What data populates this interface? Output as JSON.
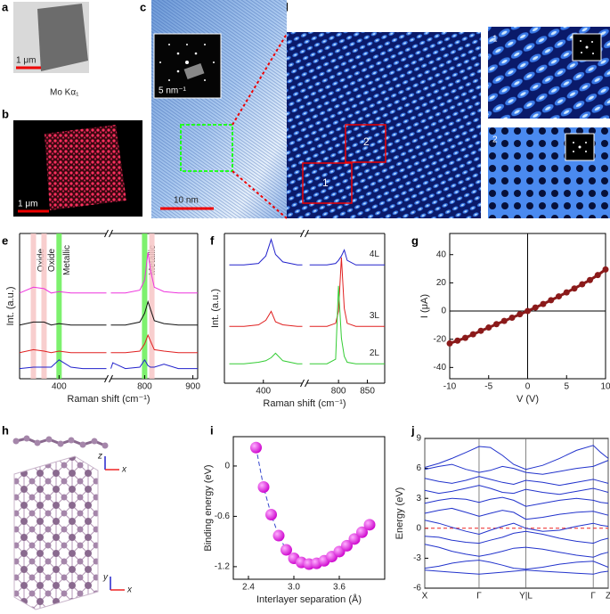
{
  "panel_labels": [
    "a",
    "b",
    "c",
    "d",
    "e",
    "f",
    "g",
    "h",
    "i",
    "j"
  ],
  "images": {
    "a_scale": "1 μm",
    "a_caption": "Mo Kα₁",
    "b_scale": "1 μm",
    "c_inset_scale": "5 nm⁻¹",
    "c_scale": "10 nm",
    "d_box_1": "1",
    "d_box_2": "2",
    "d_inset_1": "1",
    "d_inset_2": "2"
  },
  "structure": {
    "axis_labels": [
      "z",
      "x",
      "y",
      "x"
    ]
  },
  "chart_data": [
    {
      "type": "line",
      "xlabel": "Raman shift (cm⁻¹)",
      "ylabel": "Int. (a.u.)",
      "x_segments": [
        [
          300,
          520
        ],
        [
          730,
          910
        ]
      ],
      "xticks": [
        400,
        800,
        900
      ],
      "ylim": [
        0,
        10
      ],
      "bands": [
        {
          "x": 335,
          "color": "#f7c6c6",
          "label": "Oxide"
        },
        {
          "x": 362,
          "color": "#f7c6c6",
          "label": "Oxide"
        },
        {
          "x": 400,
          "color": "#66ee55",
          "label": "Metallic"
        },
        {
          "x": 800,
          "color": "#66ee55",
          "label": "Metallic"
        },
        {
          "x": 815,
          "color": "#f7c6c6"
        }
      ],
      "series": [
        {
          "color": "#ee33dd",
          "x": [
            300,
            335,
            362,
            380,
            400,
            430,
            460,
            500,
            520,
            730,
            734,
            760,
            790,
            800,
            807,
            812,
            820,
            840,
            870,
            910
          ],
          "values": [
            5.9,
            6.3,
            6.2,
            5.9,
            6.0,
            5.9,
            5.9,
            5.9,
            5.9,
            5.9,
            5.9,
            5.9,
            6.1,
            6.8,
            8.7,
            7.5,
            6.3,
            6.0,
            5.9,
            5.9
          ]
        },
        {
          "color": "#111111",
          "x": [
            300,
            335,
            362,
            380,
            400,
            430,
            460,
            500,
            520,
            730,
            734,
            760,
            790,
            800,
            807,
            812,
            820,
            840,
            870,
            910
          ],
          "values": [
            3.7,
            3.9,
            3.9,
            3.7,
            3.8,
            3.7,
            3.7,
            3.7,
            3.7,
            3.7,
            3.7,
            3.7,
            3.9,
            4.5,
            5.3,
            4.8,
            4.0,
            3.8,
            3.7,
            3.7
          ]
        },
        {
          "color": "#e02020",
          "x": [
            300,
            335,
            362,
            380,
            400,
            430,
            460,
            500,
            520,
            730,
            734,
            760,
            790,
            800,
            807,
            812,
            820,
            840,
            870,
            910
          ],
          "values": [
            1.8,
            2.0,
            1.9,
            1.8,
            1.9,
            1.8,
            1.8,
            1.8,
            1.8,
            1.8,
            1.8,
            1.8,
            1.9,
            2.4,
            3.0,
            2.6,
            2.0,
            1.9,
            1.8,
            1.8
          ]
        },
        {
          "color": "#2222cc",
          "x": [
            300,
            335,
            362,
            380,
            400,
            430,
            460,
            500,
            520,
            730,
            734,
            760,
            790,
            800,
            807,
            812,
            820,
            840,
            870,
            910
          ],
          "values": [
            0.7,
            0.8,
            0.8,
            0.8,
            1.3,
            0.8,
            0.7,
            0.7,
            0.7,
            0.7,
            1.1,
            0.7,
            0.8,
            1.3,
            0.9,
            0.8,
            0.8,
            1.0,
            0.7,
            0.7
          ]
        }
      ]
    },
    {
      "type": "line",
      "xlabel": "Raman shift (cm⁻¹)",
      "ylabel": "Int. (a.u.)",
      "x_segments": [
        [
          320,
          480
        ],
        [
          745,
          880
        ]
      ],
      "xticks": [
        400,
        800,
        850
      ],
      "ylim": [
        0,
        10
      ],
      "series": [
        {
          "name": "4L",
          "color": "#2222cc",
          "x": [
            330,
            360,
            390,
            405,
            416,
            425,
            440,
            470,
            480,
            750,
            780,
            795,
            800,
            805,
            810,
            815,
            830,
            860,
            880
          ],
          "values": [
            7.9,
            7.9,
            8.0,
            8.5,
            9.6,
            8.6,
            8.1,
            7.9,
            7.9,
            7.9,
            7.9,
            8.0,
            8.2,
            8.5,
            8.9,
            8.2,
            7.9,
            7.9,
            7.9
          ]
        },
        {
          "name": "3L",
          "color": "#e02020",
          "x": [
            330,
            360,
            390,
            405,
            416,
            425,
            440,
            470,
            480,
            750,
            780,
            795,
            800,
            805,
            810,
            815,
            830,
            860,
            880
          ],
          "values": [
            3.8,
            3.8,
            3.9,
            4.2,
            4.8,
            4.1,
            3.9,
            3.8,
            3.8,
            3.8,
            3.8,
            4.0,
            4.8,
            8.4,
            5.0,
            4.0,
            3.8,
            3.8,
            3.8
          ]
        },
        {
          "name": "2L",
          "color": "#33cc33",
          "x": [
            330,
            360,
            390,
            405,
            416,
            425,
            440,
            470,
            480,
            750,
            780,
            795,
            800,
            805,
            810,
            815,
            830,
            860,
            880
          ],
          "values": [
            1.3,
            1.3,
            1.4,
            1.5,
            1.7,
            2.0,
            1.5,
            1.3,
            1.3,
            1.3,
            1.3,
            1.6,
            6.5,
            3.0,
            1.8,
            1.4,
            1.3,
            1.3,
            1.3
          ]
        }
      ]
    },
    {
      "type": "scatter",
      "xlabel": "V (V)",
      "ylabel": "I (μA)",
      "line_style": "solid",
      "zero_lines": true,
      "xlim": [
        -10,
        10
      ],
      "xticks": [
        -10,
        -5,
        0,
        5,
        10
      ],
      "ylim": [
        -48,
        55
      ],
      "yticks": [
        -40,
        -20,
        0,
        20,
        40
      ],
      "series": [
        {
          "color": "#8b1a1a",
          "x": [
            -10,
            -9,
            -8,
            -7,
            -6,
            -5,
            -4,
            -3,
            -2,
            -1,
            0,
            1,
            2,
            3,
            4,
            5,
            6,
            7,
            8,
            9,
            10
          ],
          "values": [
            -23,
            -21,
            -19,
            -16.5,
            -14,
            -11.7,
            -9.3,
            -7,
            -4.7,
            -2.3,
            0,
            2.5,
            5,
            7.7,
            10.4,
            13.2,
            16,
            19,
            22,
            25.5,
            29.5
          ]
        }
      ]
    },
    {
      "type": "scatter",
      "xlabel": "Interlayer separation (Å)",
      "ylabel": "Binding energy (eV)",
      "line_style": "dashed",
      "xlim": [
        2.2,
        4.2
      ],
      "xticks": [
        2.4,
        {
          "value": 3,
          "label": "3.0"
        },
        3.6
      ],
      "ylim": [
        -1.35,
        0.35
      ],
      "yticks": [
        0,
        -0.6,
        -1.2
      ],
      "series": [
        {
          "color": "#ee22ee",
          "x": [
            2.5,
            2.6,
            2.7,
            2.8,
            2.9,
            3.0,
            3.1,
            3.2,
            3.3,
            3.4,
            3.5,
            3.6,
            3.7,
            3.8,
            3.9,
            4.0
          ],
          "values": [
            0.22,
            -0.25,
            -0.58,
            -0.83,
            -1.0,
            -1.1,
            -1.15,
            -1.17,
            -1.16,
            -1.13,
            -1.08,
            -1.02,
            -0.95,
            -0.87,
            -0.79,
            -0.7
          ]
        }
      ]
    },
    {
      "type": "line",
      "ylabel": "Energy (eV)",
      "color": "#2233cc",
      "fermi_level": 0,
      "grid": true,
      "xlim": [
        0,
        196
      ],
      "xticks": [
        {
          "value": 0,
          "label": "X"
        },
        {
          "value": 58,
          "label": "Γ"
        },
        {
          "value": 108,
          "label": "Y|L"
        },
        {
          "value": 180,
          "label": "Γ"
        },
        {
          "value": 196,
          "label": "Z"
        }
      ],
      "ylim": [
        -6,
        9
      ],
      "yticks": [
        -6,
        -3,
        0,
        3,
        6,
        9
      ],
      "series": [
        {
          "x": [
            0,
            15,
            29,
            44,
            58,
            70,
            83,
            95,
            108,
            126,
            144,
            162,
            180,
            188,
            196
          ],
          "values": [
            -4.2,
            -4.3,
            -4.4,
            -4.5,
            -4.6,
            -4.5,
            -4.4,
            -4.3,
            -4.2,
            -4.3,
            -4.4,
            -4.5,
            -4.6,
            -4.4,
            -4.3
          ]
        },
        {
          "x": [
            0,
            15,
            29,
            44,
            58,
            70,
            83,
            95,
            108,
            126,
            144,
            162,
            180,
            188,
            196
          ],
          "values": [
            -4.0,
            -3.8,
            -3.5,
            -3.3,
            -3.2,
            -3.4,
            -3.7,
            -4.0,
            -4.1,
            -3.9,
            -3.6,
            -3.4,
            -3.3,
            -3.6,
            -3.9
          ]
        },
        {
          "x": [
            0,
            15,
            29,
            44,
            58,
            70,
            83,
            95,
            108,
            126,
            144,
            162,
            180,
            188,
            196
          ],
          "values": [
            -1.6,
            -1.9,
            -2.3,
            -2.6,
            -2.8,
            -2.6,
            -2.3,
            -2.0,
            -1.9,
            -2.1,
            -2.4,
            -2.7,
            -2.9,
            -2.6,
            -2.4
          ]
        },
        {
          "x": [
            0,
            15,
            29,
            44,
            58,
            70,
            83,
            95,
            108,
            126,
            144,
            162,
            180,
            188,
            196
          ],
          "values": [
            -0.8,
            -0.9,
            -1.2,
            -1.4,
            -1.5,
            -1.2,
            -0.9,
            -0.5,
            -0.3,
            -0.6,
            -1.0,
            -1.3,
            -1.5,
            -1.2,
            -1.0
          ]
        },
        {
          "x": [
            0,
            15,
            29,
            44,
            58,
            70,
            83,
            95,
            108,
            126,
            144,
            162,
            180,
            188,
            196
          ],
          "values": [
            0.8,
            0.5,
            0.1,
            -0.3,
            -0.6,
            -0.2,
            0.2,
            0.5,
            0.0,
            -0.3,
            -0.2,
            0.2,
            0.5,
            0.3,
            0.2
          ]
        },
        {
          "x": [
            0,
            15,
            29,
            44,
            58,
            70,
            83,
            95,
            108,
            126,
            144,
            162,
            180,
            188,
            196
          ],
          "values": [
            1.5,
            1.8,
            2.0,
            1.6,
            1.2,
            1.5,
            1.8,
            1.6,
            0.9,
            1.1,
            1.4,
            1.6,
            1.7,
            1.5,
            1.3
          ]
        },
        {
          "x": [
            0,
            15,
            29,
            44,
            58,
            70,
            83,
            95,
            108,
            126,
            144,
            162,
            180,
            188,
            196
          ],
          "values": [
            2.5,
            2.8,
            3.0,
            2.9,
            2.6,
            2.9,
            3.1,
            2.8,
            2.2,
            2.5,
            2.8,
            3.0,
            2.8,
            2.6,
            2.5
          ]
        },
        {
          "x": [
            0,
            15,
            29,
            44,
            58,
            70,
            83,
            95,
            108,
            126,
            144,
            162,
            180,
            188,
            196
          ],
          "values": [
            3.8,
            3.5,
            3.7,
            4.0,
            4.3,
            4.0,
            3.6,
            3.5,
            3.9,
            3.6,
            3.4,
            3.7,
            4.0,
            3.8,
            3.6
          ]
        },
        {
          "x": [
            0,
            15,
            29,
            44,
            58,
            70,
            83,
            95,
            108,
            126,
            144,
            162,
            180,
            188,
            196
          ],
          "values": [
            5.0,
            4.7,
            4.5,
            4.8,
            5.2,
            4.9,
            4.6,
            4.4,
            4.8,
            4.6,
            4.3,
            4.6,
            4.9,
            4.7,
            4.5
          ]
        },
        {
          "x": [
            0,
            15,
            29,
            44,
            58,
            70,
            83,
            95,
            108,
            126,
            144,
            162,
            180,
            188,
            196
          ],
          "values": [
            5.9,
            6.2,
            6.4,
            5.9,
            5.6,
            5.8,
            6.2,
            6.0,
            5.6,
            5.4,
            5.7,
            6.0,
            6.2,
            6.5,
            6.8
          ]
        },
        {
          "x": [
            0,
            15,
            29,
            44,
            58,
            70,
            83,
            95,
            108,
            126,
            144,
            162,
            180,
            188,
            196
          ],
          "values": [
            6.1,
            6.5,
            7.0,
            7.6,
            8.2,
            8.1,
            7.3,
            6.4,
            5.9,
            6.3,
            7.0,
            7.8,
            8.3,
            7.6,
            7.0
          ]
        }
      ]
    }
  ]
}
